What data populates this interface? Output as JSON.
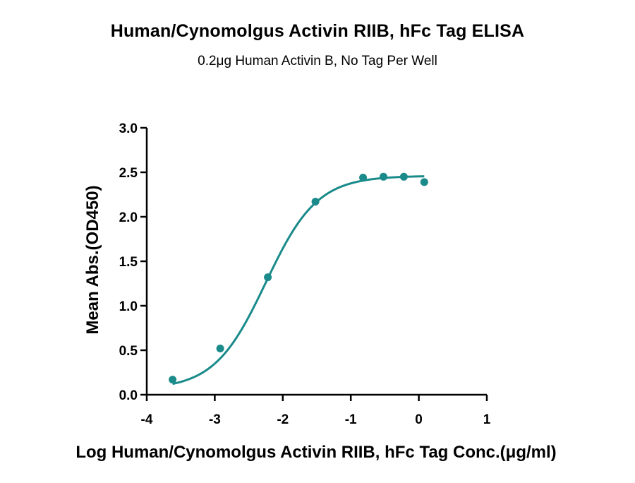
{
  "chart_data": {
    "type": "scatter",
    "title": "Human/Cynomolgus Activin RIIB, hFc Tag ELISA",
    "subtitle": "0.2μg Human Activin B, No Tag Per Well",
    "xlabel": "Log Human/Cynomolgus Activin RIIB, hFc Tag Conc.(μg/ml)",
    "ylabel": "Mean Abs.(OD450)",
    "xlim": [
      -4,
      1
    ],
    "ylim": [
      0,
      3.0
    ],
    "xticks": [
      "-4",
      "-3",
      "-2",
      "-1",
      "0",
      "1"
    ],
    "yticks": [
      "0.0",
      "0.5",
      "1.0",
      "1.5",
      "2.0",
      "2.5",
      "3.0"
    ],
    "color": "#1a8a8a",
    "grid": false,
    "series": [
      {
        "points": [
          {
            "x": -3.62,
            "y": 0.17
          },
          {
            "x": -2.92,
            "y": 0.52
          },
          {
            "x": -2.22,
            "y": 1.32
          },
          {
            "x": -1.52,
            "y": 2.17
          },
          {
            "x": -0.82,
            "y": 2.44
          },
          {
            "x": -0.52,
            "y": 2.45
          },
          {
            "x": -0.22,
            "y": 2.45
          },
          {
            "x": 0.08,
            "y": 2.39
          }
        ],
        "fit": {
          "type": "4PL",
          "bottom": 0.06,
          "top": 2.46,
          "logEC50": -2.25,
          "hill": 1.15,
          "xrange": [
            -3.62,
            0.08
          ]
        }
      }
    ]
  }
}
